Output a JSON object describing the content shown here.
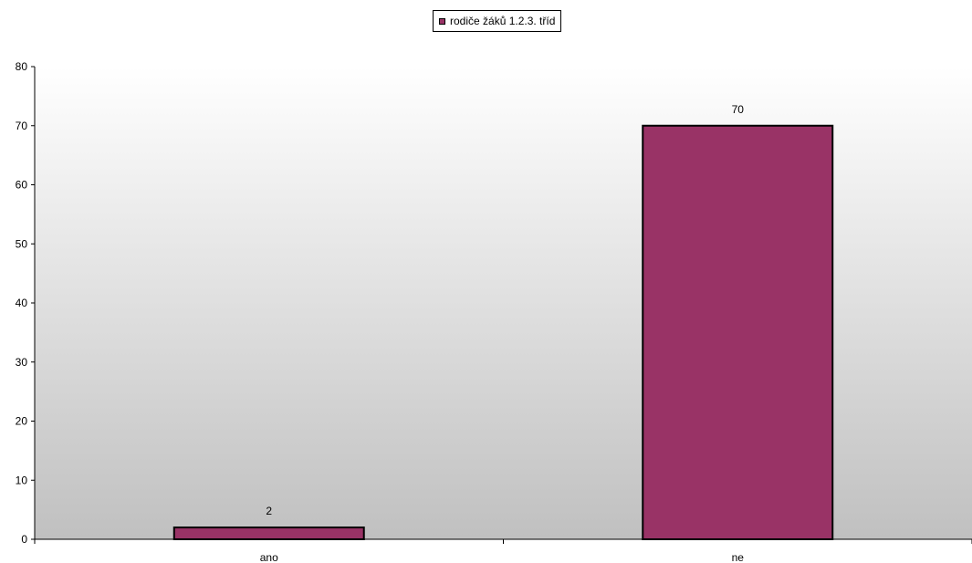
{
  "chart_data": {
    "type": "bar",
    "title": "",
    "xlabel": "",
    "ylabel": "",
    "categories": [
      "ano",
      "ne"
    ],
    "series": [
      {
        "name": "rodiče žáků 1.2.3. tříd",
        "values": [
          2,
          70
        ]
      }
    ],
    "data_labels": [
      "2",
      "70"
    ],
    "ylim": [
      0,
      80
    ],
    "yticks": [
      0,
      10,
      20,
      30,
      40,
      50,
      60,
      70,
      80
    ],
    "grid": false,
    "legend_position": "top-center",
    "colors": {
      "bar_fill": "#993366",
      "bar_stroke": "#000000",
      "plot_bg_top": "#ffffff",
      "plot_bg_bottom": "#c0c0c0"
    }
  }
}
